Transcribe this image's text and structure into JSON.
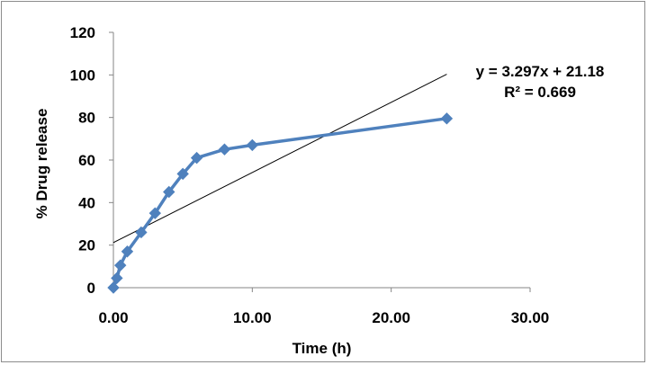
{
  "chart_data": {
    "type": "scatter",
    "title": "",
    "xlabel": "Time (h)",
    "ylabel": "% Drug release",
    "xlim": [
      0,
      30
    ],
    "ylim": [
      0,
      120
    ],
    "x_ticks": [
      0,
      10,
      20,
      30
    ],
    "x_tick_labels": [
      "0.00",
      "10.00",
      "20.00",
      "30.00"
    ],
    "y_ticks": [
      0,
      20,
      40,
      60,
      80,
      100,
      120
    ],
    "y_tick_labels": [
      "0",
      "20",
      "40",
      "60",
      "80",
      "100",
      "120"
    ],
    "grid": false,
    "legend": "none",
    "series": [
      {
        "x": [
          0,
          0.25,
          0.5,
          1,
          2,
          3,
          4,
          5,
          6,
          8,
          10,
          24
        ],
        "y": [
          0,
          4.5,
          10.5,
          17,
          26,
          35,
          45,
          53.5,
          61,
          65,
          67,
          79.5
        ],
        "color": "#4f81bd",
        "marker": "diamond",
        "line": true
      }
    ],
    "trendline": {
      "slope": 3.297,
      "intercept": 21.18,
      "x_range": [
        0,
        24
      ],
      "color": "#000000",
      "equation_label": "y = 3.297x + 21.18",
      "r2_label": "R² = 0.669"
    }
  }
}
